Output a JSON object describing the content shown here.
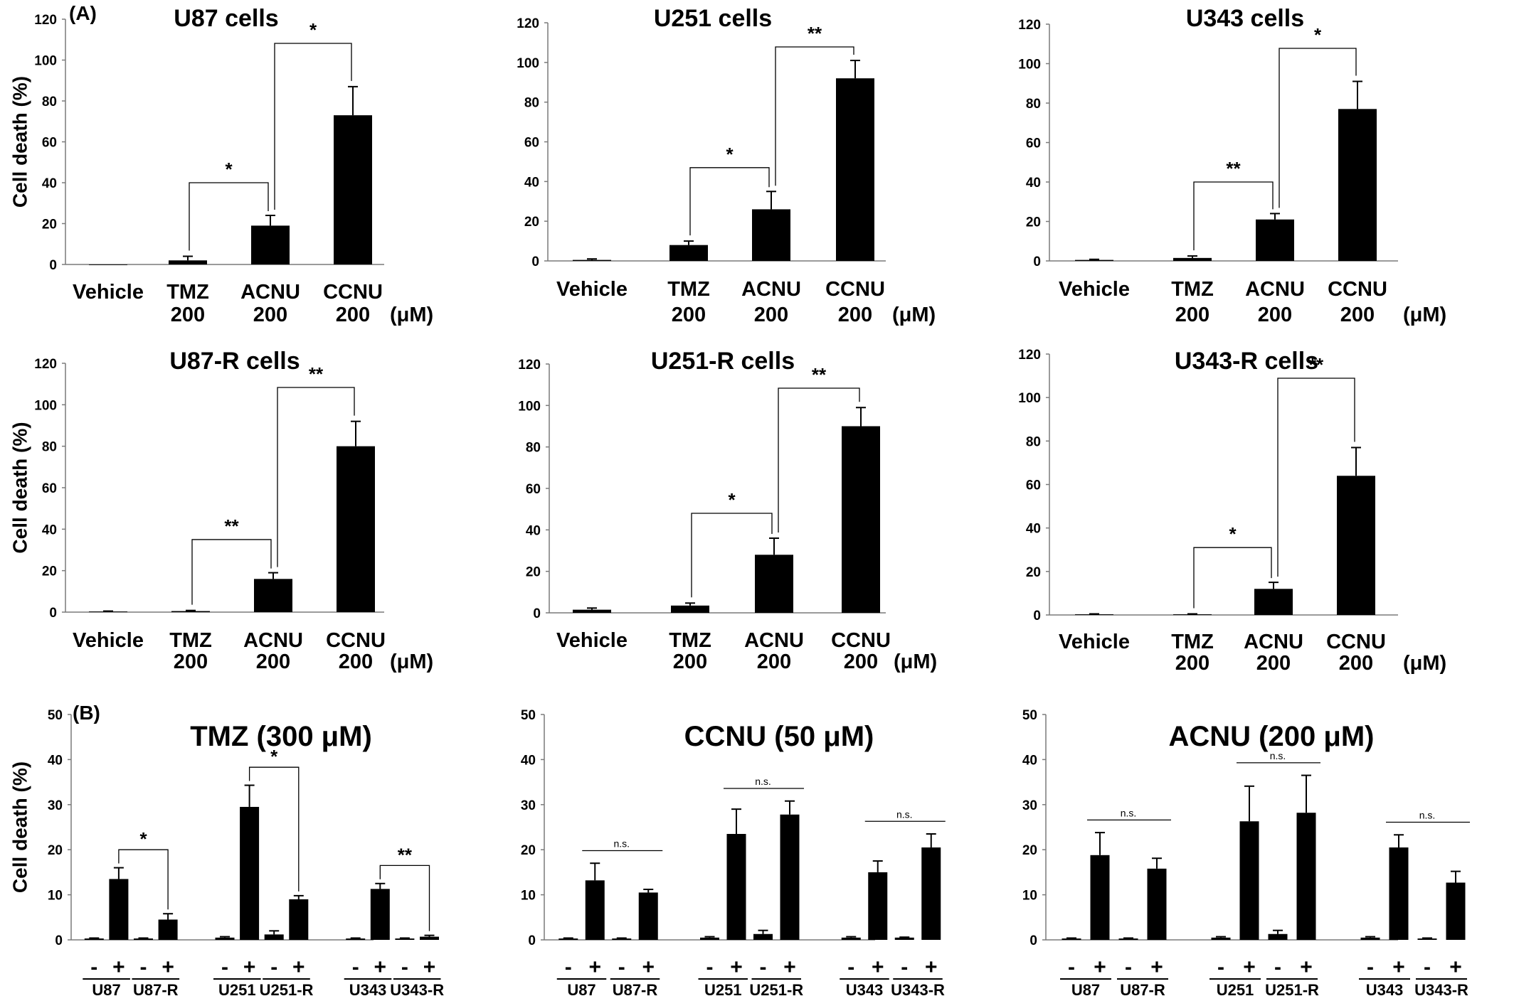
{
  "figure": {
    "panel_labels": [
      "(A)",
      "(B)"
    ],
    "y_axis_label": "Cell death (%)"
  },
  "chart_data": [
    {
      "type": "bar",
      "panel": "A",
      "title": "U87 cells",
      "categories": [
        "Vehicle",
        "TMZ 200",
        "ACNU 200",
        "CCNU 200"
      ],
      "cat_lines": [
        [
          "Vehicle"
        ],
        [
          "TMZ",
          "200"
        ],
        [
          "ACNU",
          "200"
        ],
        [
          "CCNU",
          "200"
        ]
      ],
      "unit": "(μM)",
      "ylabel": "Cell death (%)",
      "ylim": [
        0,
        120
      ],
      "yticks": [
        0,
        20,
        40,
        60,
        80,
        100,
        120
      ],
      "values": [
        0,
        2,
        19,
        73
      ],
      "errors": [
        0,
        2,
        5,
        14
      ],
      "significance": [
        {
          "from": 1,
          "to": 2,
          "label": "*"
        },
        {
          "from": 2,
          "to": 3,
          "label": "*"
        }
      ]
    },
    {
      "type": "bar",
      "panel": "A",
      "title": "U251 cells",
      "categories": [
        "Vehicle",
        "TMZ 200",
        "ACNU 200",
        "CCNU 200"
      ],
      "cat_lines": [
        [
          "Vehicle"
        ],
        [
          "TMZ",
          "200"
        ],
        [
          "ACNU",
          "200"
        ],
        [
          "CCNU",
          "200"
        ]
      ],
      "unit": "(μM)",
      "ylabel": "",
      "ylim": [
        0,
        120
      ],
      "yticks": [
        0,
        20,
        40,
        60,
        80,
        100,
        120
      ],
      "values": [
        0.5,
        8,
        26,
        92
      ],
      "errors": [
        0.5,
        2,
        9,
        9
      ],
      "significance": [
        {
          "from": 1,
          "to": 2,
          "label": "*"
        },
        {
          "from": 2,
          "to": 3,
          "label": "**"
        }
      ]
    },
    {
      "type": "bar",
      "panel": "A",
      "title": "U343 cells",
      "categories": [
        "Vehicle",
        "TMZ 200",
        "ACNU 200",
        "CCNU 200"
      ],
      "cat_lines": [
        [
          "Vehicle"
        ],
        [
          "TMZ",
          "200"
        ],
        [
          "ACNU",
          "200"
        ],
        [
          "CCNU",
          "200"
        ]
      ],
      "unit": "(μM)",
      "ylabel": "",
      "ylim": [
        0,
        120
      ],
      "yticks": [
        0,
        20,
        40,
        60,
        80,
        100,
        120
      ],
      "values": [
        0.5,
        1.5,
        21,
        77
      ],
      "errors": [
        0.3,
        1,
        3,
        14
      ],
      "significance": [
        {
          "from": 1,
          "to": 2,
          "label": "**"
        },
        {
          "from": 2,
          "to": 3,
          "label": "*"
        }
      ]
    },
    {
      "type": "bar",
      "panel": "A",
      "title": "U87-R cells",
      "categories": [
        "Vehicle",
        "TMZ 200",
        "ACNU 200",
        "CCNU 200"
      ],
      "cat_lines": [
        [
          "Vehicle"
        ],
        [
          "TMZ",
          "200"
        ],
        [
          "ACNU",
          "200"
        ],
        [
          "CCNU",
          "200"
        ]
      ],
      "unit": "(μM)",
      "ylabel": "Cell death (%)",
      "ylim": [
        0,
        120
      ],
      "yticks": [
        0,
        20,
        40,
        60,
        80,
        100,
        120
      ],
      "values": [
        0.3,
        0.5,
        16,
        80
      ],
      "errors": [
        0.2,
        0.3,
        3,
        12
      ],
      "significance": [
        {
          "from": 1,
          "to": 2,
          "label": "**"
        },
        {
          "from": 2,
          "to": 3,
          "label": "**"
        }
      ]
    },
    {
      "type": "bar",
      "panel": "A",
      "title": "U251-R cells",
      "categories": [
        "Vehicle",
        "TMZ 200",
        "ACNU 200",
        "CCNU 200"
      ],
      "cat_lines": [
        [
          "Vehicle"
        ],
        [
          "TMZ",
          "200"
        ],
        [
          "ACNU",
          "200"
        ],
        [
          "CCNU",
          "200"
        ]
      ],
      "unit": "(μM)",
      "ylabel": "",
      "ylim": [
        0,
        120
      ],
      "yticks": [
        0,
        20,
        40,
        60,
        80,
        100,
        120
      ],
      "values": [
        1.5,
        3.5,
        28,
        90
      ],
      "errors": [
        0.8,
        1.2,
        8,
        9
      ],
      "significance": [
        {
          "from": 1,
          "to": 2,
          "label": "*"
        },
        {
          "from": 2,
          "to": 3,
          "label": "**"
        }
      ]
    },
    {
      "type": "bar",
      "panel": "A",
      "title": "U343-R cells",
      "categories": [
        "Vehicle",
        "TMZ 200",
        "ACNU 200",
        "CCNU 200"
      ],
      "cat_lines": [
        [
          "Vehicle"
        ],
        [
          "TMZ",
          "200"
        ],
        [
          "ACNU",
          "200"
        ],
        [
          "CCNU",
          "200"
        ]
      ],
      "unit": "(μM)",
      "ylabel": "",
      "ylim": [
        0,
        120
      ],
      "yticks": [
        0,
        20,
        40,
        60,
        80,
        100,
        120
      ],
      "values": [
        0.3,
        0.3,
        12,
        64
      ],
      "errors": [
        0.2,
        0.2,
        3,
        13
      ],
      "significance": [
        {
          "from": 1,
          "to": 2,
          "label": "*"
        },
        {
          "from": 2,
          "to": 3,
          "label": "**"
        }
      ]
    },
    {
      "type": "bar",
      "panel": "B",
      "title": "TMZ (300 μM)",
      "ylabel": "Cell death (%)",
      "ylim": [
        0,
        50
      ],
      "yticks": [
        0,
        10,
        20,
        30,
        40,
        50
      ],
      "treatment_labels": [
        "-",
        "+"
      ],
      "groups": [
        "U87",
        "U87-R",
        "U251",
        "U251-R",
        "U343",
        "U343-R"
      ],
      "values": [
        0.3,
        13.5,
        0.3,
        4.5,
        0.5,
        29.5,
        1.2,
        9,
        0.3,
        11.3,
        0.3,
        0.7
      ],
      "errors": [
        0.1,
        2.5,
        0.1,
        1.3,
        0.2,
        4.8,
        0.8,
        0.8,
        0.1,
        1.2,
        0.1,
        0.3
      ],
      "significance": [
        {
          "from": 1,
          "to": 3,
          "label": "*",
          "style": "bracket"
        },
        {
          "from": 5,
          "to": 7,
          "label": "*",
          "style": "bracket"
        },
        {
          "from": 9,
          "to": 11,
          "label": "**",
          "style": "bracket"
        }
      ]
    },
    {
      "type": "bar",
      "panel": "B",
      "title": "CCNU (50 μM)",
      "ylabel": "",
      "ylim": [
        0,
        50
      ],
      "yticks": [
        0,
        10,
        20,
        30,
        40,
        50
      ],
      "treatment_labels": [
        "-",
        "+"
      ],
      "groups": [
        "U87",
        "U87-R",
        "U251",
        "U251-R",
        "U343",
        "U343-R"
      ],
      "values": [
        0.3,
        13.2,
        0.3,
        10.5,
        0.5,
        23.5,
        1.3,
        27.8,
        0.5,
        15,
        0.5,
        20.5
      ],
      "errors": [
        0.1,
        3.8,
        0.1,
        0.7,
        0.2,
        5.5,
        0.8,
        3,
        0.2,
        2.5,
        0.1,
        3
      ],
      "significance": [
        {
          "from": 1,
          "to": 3,
          "label": "n.s.",
          "style": "line"
        },
        {
          "from": 5,
          "to": 7,
          "label": "n.s.",
          "style": "line"
        },
        {
          "from": 9,
          "to": 11,
          "label": "n.s.",
          "style": "line"
        }
      ]
    },
    {
      "type": "bar",
      "panel": "B",
      "title": "ACNU (200 μM)",
      "ylabel": "",
      "ylim": [
        0,
        50
      ],
      "yticks": [
        0,
        10,
        20,
        30,
        40,
        50
      ],
      "treatment_labels": [
        "-",
        "+"
      ],
      "groups": [
        "U87",
        "U87-R",
        "U251",
        "U251-R",
        "U343",
        "U343-R"
      ],
      "values": [
        0.3,
        18.8,
        0.3,
        15.8,
        0.5,
        26.3,
        1.3,
        28.2,
        0.5,
        20.5,
        0.3,
        12.7
      ],
      "errors": [
        0.1,
        5,
        0.1,
        2.3,
        0.2,
        7.8,
        0.8,
        8.3,
        0.2,
        2.8,
        0.1,
        2.5
      ],
      "significance": [
        {
          "from": 1,
          "to": 3,
          "label": "n.s.",
          "style": "line"
        },
        {
          "from": 5,
          "to": 7,
          "label": "n.s.",
          "style": "line"
        },
        {
          "from": 9,
          "to": 11,
          "label": "n.s.",
          "style": "line"
        }
      ]
    }
  ]
}
